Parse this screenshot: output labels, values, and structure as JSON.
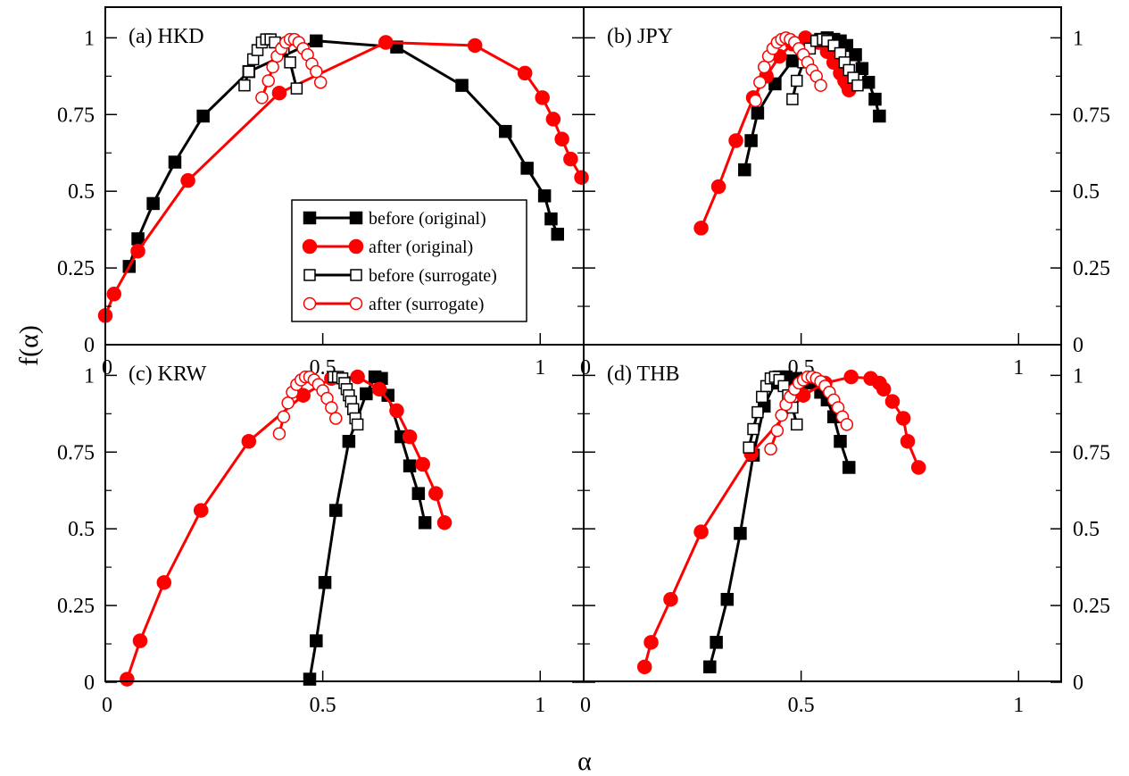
{
  "figure": {
    "xlabel": "α",
    "ylabel": "f(α)"
  },
  "legend": {
    "placement": "inside panel (a), lower-right",
    "entries": [
      {
        "label": "before (original)",
        "series_key": "before_original",
        "color": "#000000",
        "marker": "square-filled"
      },
      {
        "label": "after (original)",
        "series_key": "after_original",
        "color": "#ff0000",
        "marker": "circle-filled"
      },
      {
        "label": "before (surrogate)",
        "series_key": "before_surrogate",
        "color": "#000000",
        "marker": "square-open"
      },
      {
        "label": "after (surrogate)",
        "series_key": "after_surrogate",
        "color": "#ff0000",
        "marker": "circle-open"
      }
    ]
  },
  "chart_data": [
    {
      "type": "line",
      "panel": "a",
      "label": "(a) HKD",
      "xlabel": "α",
      "ylabel": "f(α)",
      "xlim": [
        0,
        1.1
      ],
      "ylim": [
        0,
        1.1
      ],
      "x_ticks": [
        0,
        0.5,
        1
      ],
      "x_tick_labels": [
        "0",
        "0.5",
        "1"
      ],
      "y_ticks": [
        0,
        0.25,
        0.5,
        0.75,
        1
      ],
      "y_tick_labels": [
        "0",
        "0.25",
        "0.5",
        "0.75",
        "1"
      ],
      "grid": false,
      "series": [
        {
          "key": "before_original",
          "x": [
            0.055,
            0.075,
            0.11,
            0.16,
            0.225,
            0.33,
            0.485,
            0.67,
            0.82,
            0.92,
            0.97,
            1.01,
            1.025,
            1.04
          ],
          "y": [
            0.255,
            0.345,
            0.46,
            0.595,
            0.745,
            0.89,
            0.99,
            0.97,
            0.845,
            0.695,
            0.575,
            0.485,
            0.41,
            0.36
          ]
        },
        {
          "key": "after_original",
          "x": [
            0.0,
            0.02,
            0.075,
            0.19,
            0.4,
            0.645,
            0.85,
            0.965,
            1.005,
            1.03,
            1.05,
            1.07,
            1.095
          ],
          "y": [
            0.095,
            0.165,
            0.305,
            0.535,
            0.82,
            0.985,
            0.975,
            0.885,
            0.805,
            0.735,
            0.67,
            0.605,
            0.545
          ]
        },
        {
          "key": "before_surrogate",
          "x": [
            0.32,
            0.33,
            0.34,
            0.35,
            0.36,
            0.37,
            0.38,
            0.39,
            0.41,
            0.425,
            0.44
          ],
          "y": [
            0.845,
            0.89,
            0.93,
            0.96,
            0.985,
            0.995,
            0.995,
            0.985,
            0.965,
            0.92,
            0.835
          ]
        },
        {
          "key": "after_surrogate",
          "x": [
            0.36,
            0.375,
            0.385,
            0.395,
            0.405,
            0.415,
            0.425,
            0.435,
            0.445,
            0.455,
            0.465,
            0.475,
            0.485,
            0.495
          ],
          "y": [
            0.805,
            0.86,
            0.905,
            0.94,
            0.965,
            0.985,
            0.995,
            0.995,
            0.985,
            0.965,
            0.945,
            0.915,
            0.89,
            0.855
          ]
        }
      ]
    },
    {
      "type": "line",
      "panel": "b",
      "label": "(b) JPY",
      "xlabel": "α",
      "ylabel": "f(α)",
      "xlim": [
        0,
        1.1
      ],
      "ylim": [
        0,
        1.1
      ],
      "x_ticks": [
        0,
        0.5,
        1
      ],
      "x_tick_labels": [
        "0",
        "0.5",
        "1"
      ],
      "y_ticks": [
        0,
        0.25,
        0.5,
        0.75,
        1
      ],
      "y_tick_labels": [
        "0",
        "0.25",
        "0.5",
        "0.75",
        "1"
      ],
      "grid": false,
      "series": [
        {
          "key": "before_original",
          "x": [
            0.37,
            0.385,
            0.4,
            0.44,
            0.48,
            0.52,
            0.545,
            0.56,
            0.575,
            0.59,
            0.605,
            0.625,
            0.64,
            0.655,
            0.67,
            0.68
          ],
          "y": [
            0.57,
            0.665,
            0.755,
            0.85,
            0.925,
            0.99,
            0.995,
            1.0,
            0.995,
            0.99,
            0.975,
            0.945,
            0.9,
            0.855,
            0.8,
            0.745
          ]
        },
        {
          "key": "after_original",
          "x": [
            0.27,
            0.31,
            0.35,
            0.39,
            0.42,
            0.45,
            0.48,
            0.51,
            0.54,
            0.56,
            0.575,
            0.59,
            0.6,
            0.605,
            0.61
          ],
          "y": [
            0.38,
            0.515,
            0.665,
            0.805,
            0.875,
            0.94,
            0.98,
            1.0,
            0.985,
            0.955,
            0.92,
            0.885,
            0.86,
            0.85,
            0.83
          ]
        },
        {
          "key": "before_surrogate",
          "x": [
            0.48,
            0.49,
            0.505,
            0.52,
            0.535,
            0.55,
            0.56,
            0.575,
            0.59,
            0.6,
            0.61,
            0.62,
            0.63
          ],
          "y": [
            0.8,
            0.86,
            0.92,
            0.965,
            0.99,
            0.995,
            0.99,
            0.975,
            0.95,
            0.92,
            0.895,
            0.87,
            0.845
          ]
        },
        {
          "key": "after_surrogate",
          "x": [
            0.395,
            0.405,
            0.415,
            0.425,
            0.435,
            0.445,
            0.455,
            0.465,
            0.475,
            0.485,
            0.495,
            0.505,
            0.515,
            0.525,
            0.535,
            0.545
          ],
          "y": [
            0.795,
            0.855,
            0.905,
            0.94,
            0.965,
            0.985,
            0.995,
            1.0,
            0.995,
            0.985,
            0.965,
            0.945,
            0.92,
            0.895,
            0.875,
            0.845
          ]
        }
      ]
    },
    {
      "type": "line",
      "panel": "c",
      "label": "(c) KRW",
      "xlabel": "α",
      "ylabel": "f(α)",
      "xlim": [
        0,
        1.1
      ],
      "ylim": [
        0,
        1.1
      ],
      "x_ticks": [
        0,
        0.5,
        1
      ],
      "x_tick_labels": [
        "0",
        "0.5",
        "1"
      ],
      "y_ticks": [
        0,
        0.25,
        0.5,
        0.75,
        1
      ],
      "y_tick_labels": [
        "0",
        "0.25",
        "0.5",
        "0.75",
        "1"
      ],
      "grid": false,
      "series": [
        {
          "key": "before_original",
          "x": [
            0.47,
            0.485,
            0.505,
            0.53,
            0.56,
            0.6,
            0.62,
            0.635,
            0.65,
            0.68,
            0.7,
            0.72,
            0.735
          ],
          "y": [
            0.01,
            0.135,
            0.325,
            0.56,
            0.785,
            0.94,
            0.995,
            0.99,
            0.935,
            0.8,
            0.705,
            0.615,
            0.52
          ]
        },
        {
          "key": "after_original",
          "x": [
            0.05,
            0.08,
            0.135,
            0.22,
            0.33,
            0.455,
            0.52,
            0.58,
            0.63,
            0.67,
            0.7,
            0.73,
            0.76,
            0.78
          ],
          "y": [
            0.01,
            0.135,
            0.325,
            0.56,
            0.785,
            0.935,
            0.99,
            0.995,
            0.955,
            0.885,
            0.8,
            0.71,
            0.615,
            0.52
          ]
        },
        {
          "key": "before_surrogate",
          "x": [
            0.525,
            0.535,
            0.545,
            0.55,
            0.555,
            0.56,
            0.565,
            0.57,
            0.575,
            0.58
          ],
          "y": [
            0.995,
            0.995,
            0.99,
            0.975,
            0.955,
            0.935,
            0.915,
            0.89,
            0.86,
            0.84
          ]
        },
        {
          "key": "after_surrogate",
          "x": [
            0.4,
            0.41,
            0.42,
            0.43,
            0.44,
            0.45,
            0.46,
            0.47,
            0.48,
            0.49,
            0.5,
            0.51,
            0.52,
            0.53
          ],
          "y": [
            0.81,
            0.865,
            0.91,
            0.945,
            0.97,
            0.985,
            0.995,
            0.995,
            0.985,
            0.97,
            0.95,
            0.925,
            0.895,
            0.86
          ]
        }
      ]
    },
    {
      "type": "line",
      "panel": "d",
      "label": "(d) THB",
      "xlabel": "α",
      "ylabel": "f(α)",
      "xlim": [
        0,
        1.1
      ],
      "ylim": [
        0,
        1.1
      ],
      "x_ticks": [
        0,
        0.5,
        1
      ],
      "x_tick_labels": [
        "0",
        "0.5",
        "1"
      ],
      "y_ticks": [
        0,
        0.25,
        0.5,
        0.75,
        1
      ],
      "y_tick_labels": [
        "0",
        "0.25",
        "0.5",
        "0.75",
        "1"
      ],
      "grid": false,
      "series": [
        {
          "key": "before_original",
          "x": [
            0.29,
            0.305,
            0.33,
            0.36,
            0.39,
            0.415,
            0.44,
            0.45,
            0.465,
            0.485,
            0.52,
            0.545,
            0.56,
            0.575,
            0.59,
            0.61
          ],
          "y": [
            0.05,
            0.13,
            0.27,
            0.485,
            0.74,
            0.9,
            0.975,
            0.995,
            0.995,
            0.99,
            0.975,
            0.945,
            0.92,
            0.865,
            0.785,
            0.7
          ]
        },
        {
          "key": "after_original",
          "x": [
            0.14,
            0.155,
            0.2,
            0.27,
            0.385,
            0.505,
            0.555,
            0.615,
            0.66,
            0.68,
            0.69,
            0.71,
            0.735,
            0.745,
            0.77
          ],
          "y": [
            0.05,
            0.13,
            0.27,
            0.49,
            0.745,
            0.935,
            0.975,
            0.995,
            0.99,
            0.975,
            0.955,
            0.915,
            0.86,
            0.785,
            0.7
          ]
        },
        {
          "key": "before_surrogate",
          "x": [
            0.38,
            0.39,
            0.4,
            0.41,
            0.42,
            0.43,
            0.44,
            0.45,
            0.46,
            0.47,
            0.48,
            0.49
          ],
          "y": [
            0.765,
            0.825,
            0.88,
            0.93,
            0.965,
            0.99,
            0.995,
            0.985,
            0.965,
            0.935,
            0.895,
            0.84
          ]
        },
        {
          "key": "after_surrogate",
          "x": [
            0.43,
            0.445,
            0.455,
            0.465,
            0.475,
            0.485,
            0.495,
            0.505,
            0.515,
            0.525,
            0.535,
            0.545,
            0.555,
            0.565,
            0.575,
            0.585,
            0.595,
            0.605
          ],
          "y": [
            0.76,
            0.82,
            0.87,
            0.905,
            0.93,
            0.955,
            0.975,
            0.985,
            0.995,
            0.995,
            0.99,
            0.98,
            0.965,
            0.945,
            0.92,
            0.895,
            0.865,
            0.84
          ]
        }
      ]
    }
  ]
}
